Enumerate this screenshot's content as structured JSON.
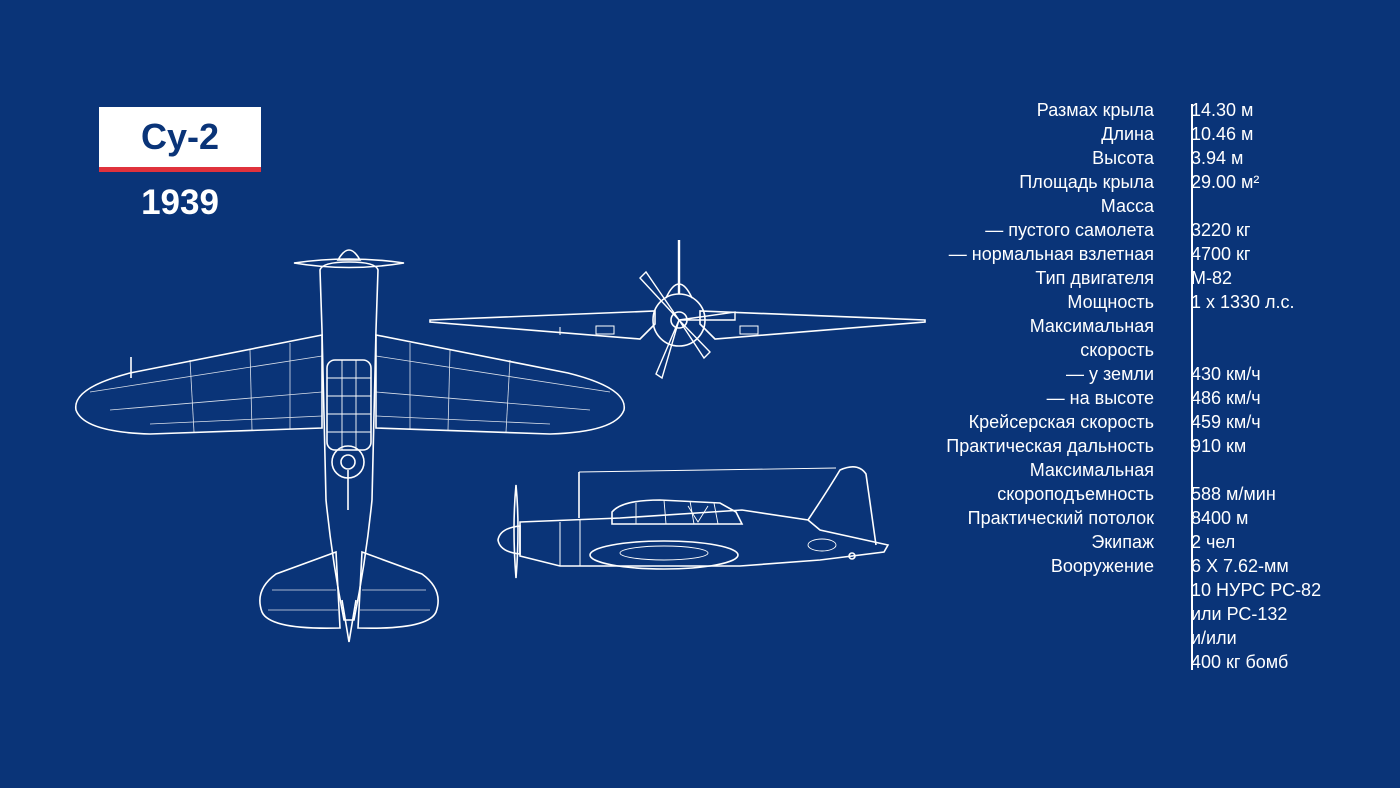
{
  "title": "Су-2",
  "year": "1939",
  "specs": [
    {
      "label": "Размах крыла",
      "value": "14.30 м"
    },
    {
      "label": "Длина",
      "value": "10.46 м"
    },
    {
      "label": "Высота",
      "value": "3.94 м"
    },
    {
      "label": "Площадь крыла",
      "value": "29.00 м²"
    },
    {
      "label": "Масса",
      "value": ""
    },
    {
      "label": "— пустого самолета",
      "value": "3220 кг"
    },
    {
      "label": "— нормальная взлетная",
      "value": "4700 кг"
    },
    {
      "label": "Тип двигателя",
      "value": "М-82"
    },
    {
      "label": "Мощность",
      "value": "1 x 1330 л.с."
    },
    {
      "label": "Максимальная",
      "value": ""
    },
    {
      "label": "скорость",
      "value": ""
    },
    {
      "label": "— у земли",
      "value": "430 км/ч"
    },
    {
      "label": "— на высоте",
      "value": "486 км/ч"
    },
    {
      "label": "Крейсерская скорость",
      "value": "459 км/ч"
    },
    {
      "label": "Практическая дальность",
      "value": "910 км"
    },
    {
      "label": "Максимальная",
      "value": ""
    },
    {
      "label": "скороподъемность",
      "value": "588 м/мин"
    },
    {
      "label": "Практический потолок",
      "value": "8400 м"
    },
    {
      "label": "Экипаж",
      "value": "2 чел"
    },
    {
      "label": "Вооружение",
      "value": "6 X 7.62-мм"
    },
    {
      "label": "",
      "value": "10 НУРС РС-82"
    },
    {
      "label": "",
      "value": "или РС-132"
    },
    {
      "label": "",
      "value": "и/или"
    },
    {
      "label": "",
      "value": "400 кг бомб"
    }
  ],
  "colors": {
    "background": "#0a3478",
    "accent_red": "#e0323c",
    "line": "#ffffff"
  }
}
